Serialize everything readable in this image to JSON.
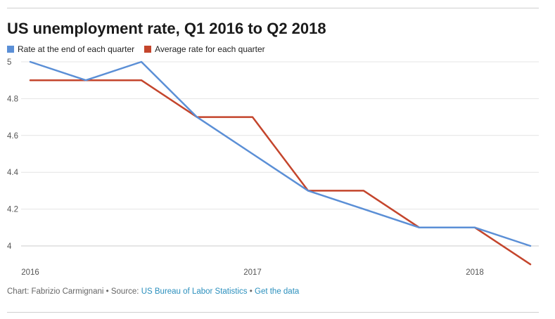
{
  "chart_data": {
    "type": "line",
    "title": "US unemployment rate, Q1 2016 to Q2 2018",
    "x": [
      "Q1 2016",
      "Q2 2016",
      "Q3 2016",
      "Q4 2016",
      "Q1 2017",
      "Q2 2017",
      "Q3 2017",
      "Q4 2017",
      "Q1 2018",
      "Q2 2018"
    ],
    "x_tick_labels": [
      {
        "label": "2016",
        "x": "Q1 2016"
      },
      {
        "label": "2017",
        "x": "Q1 2017"
      },
      {
        "label": "2018",
        "x": "Q1 2018"
      }
    ],
    "y_ticks": [
      "4",
      "4.2",
      "4.4",
      "4.6",
      "4.8",
      "5"
    ],
    "ylim": [
      4,
      5
    ],
    "grid": true,
    "legend_position": "top-left",
    "series": [
      {
        "name": "Rate at the end of each quarter",
        "color": "#5b8fd6",
        "values": [
          5.0,
          4.9,
          5.0,
          4.7,
          4.5,
          4.3,
          4.2,
          4.1,
          4.1,
          4.0
        ]
      },
      {
        "name": "Average rate for each quarter",
        "color": "#c4452c",
        "values": [
          4.9,
          4.9,
          4.9,
          4.7,
          4.7,
          4.3,
          4.3,
          4.1,
          4.1,
          3.9
        ]
      }
    ]
  },
  "footer": {
    "credit": "Chart: Fabrizio Carmignani",
    "separator": "•",
    "source_label": "Source:",
    "source_link": "US Bureau of Labor Statistics",
    "data_link": "Get the data"
  }
}
